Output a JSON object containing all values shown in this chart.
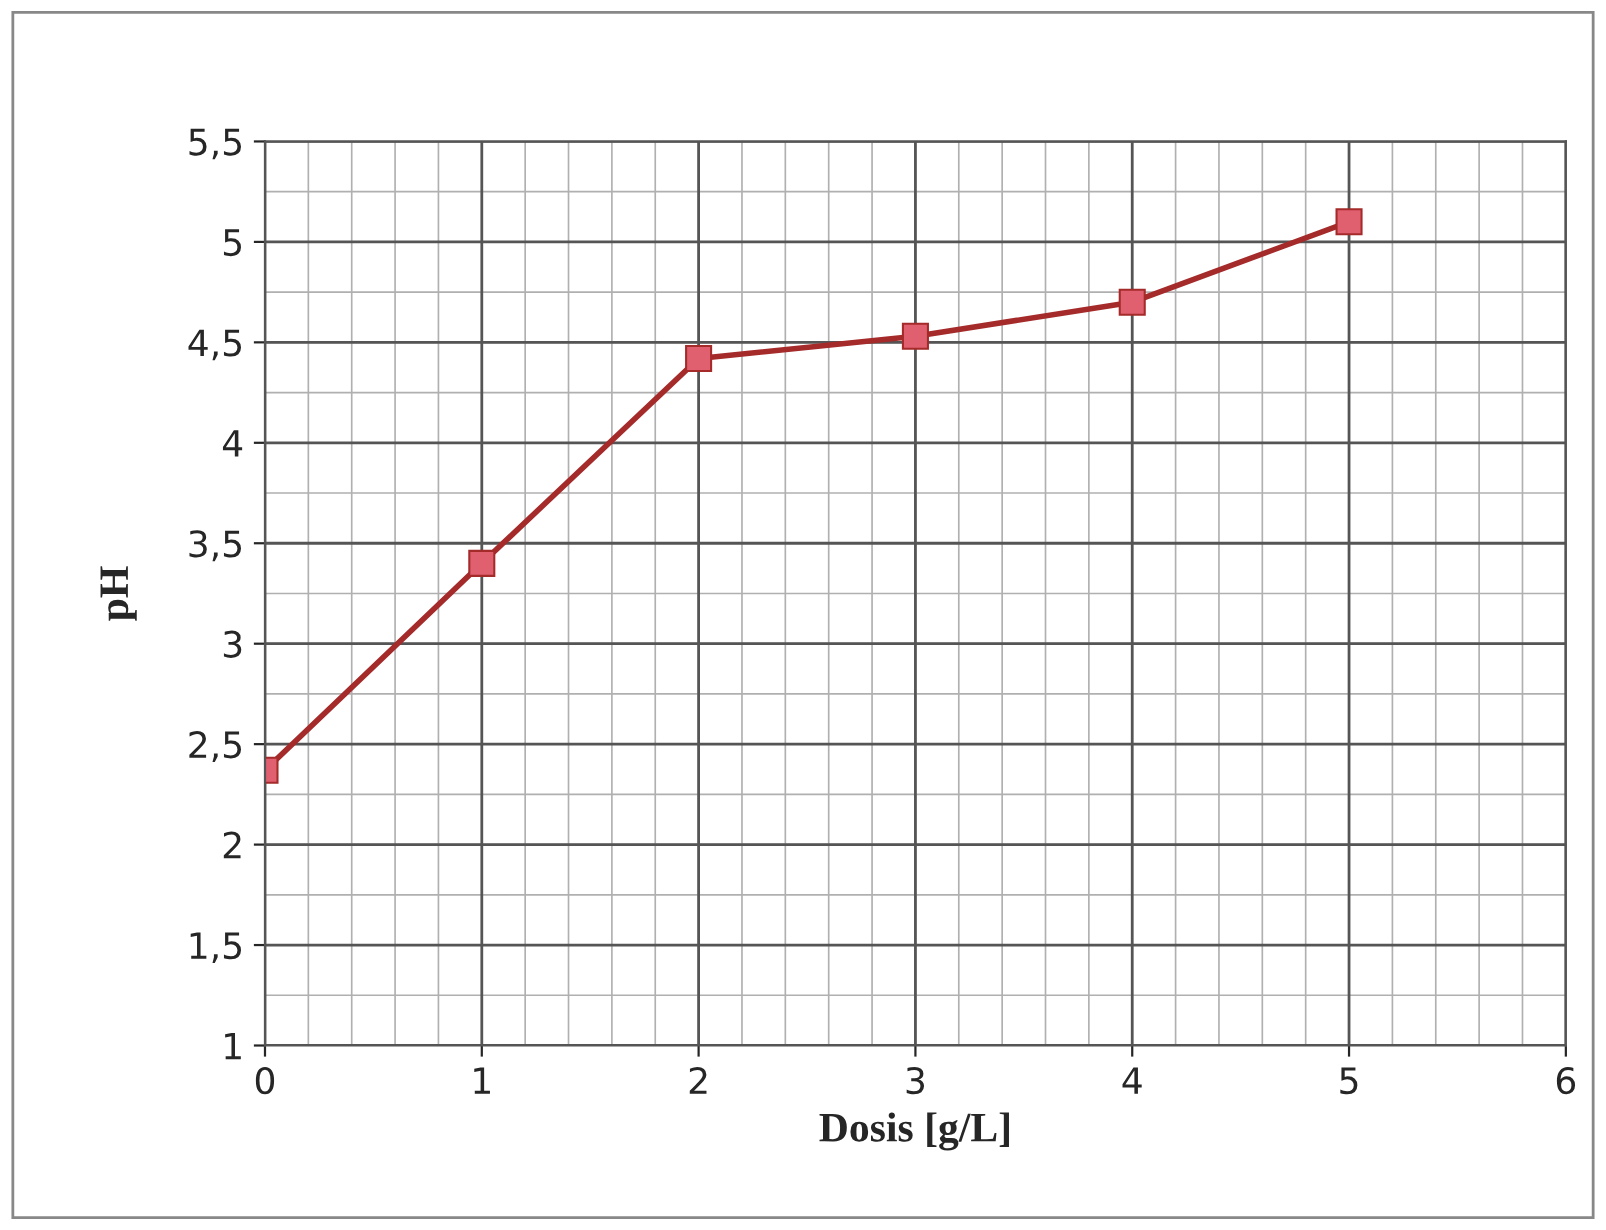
{
  "chart_data": {
    "type": "line",
    "xlabel": "Dosis [g/L]",
    "ylabel": "pH",
    "x": [
      0,
      1,
      2,
      3,
      4,
      5
    ],
    "series": [
      {
        "color": "#a52a2a",
        "values": [
          2.37,
          3.4,
          4.42,
          4.53,
          4.7,
          5.1
        ]
      }
    ],
    "xlim": [
      0,
      6
    ],
    "xticks": [
      0,
      1,
      2,
      3,
      4,
      5,
      6
    ],
    "ylim": [
      1,
      5.5
    ],
    "yticks": [
      1,
      {
        "value": 1.5,
        "label": "1,5"
      },
      2,
      {
        "value": 2.5,
        "label": "2,5"
      },
      3,
      {
        "value": 3.5,
        "label": "3,5"
      },
      4,
      {
        "value": 4.5,
        "label": "4,5"
      },
      5,
      {
        "value": 5.5,
        "label": "5,5"
      }
    ],
    "grid": true,
    "marker": "square",
    "line_style": "solid"
  }
}
